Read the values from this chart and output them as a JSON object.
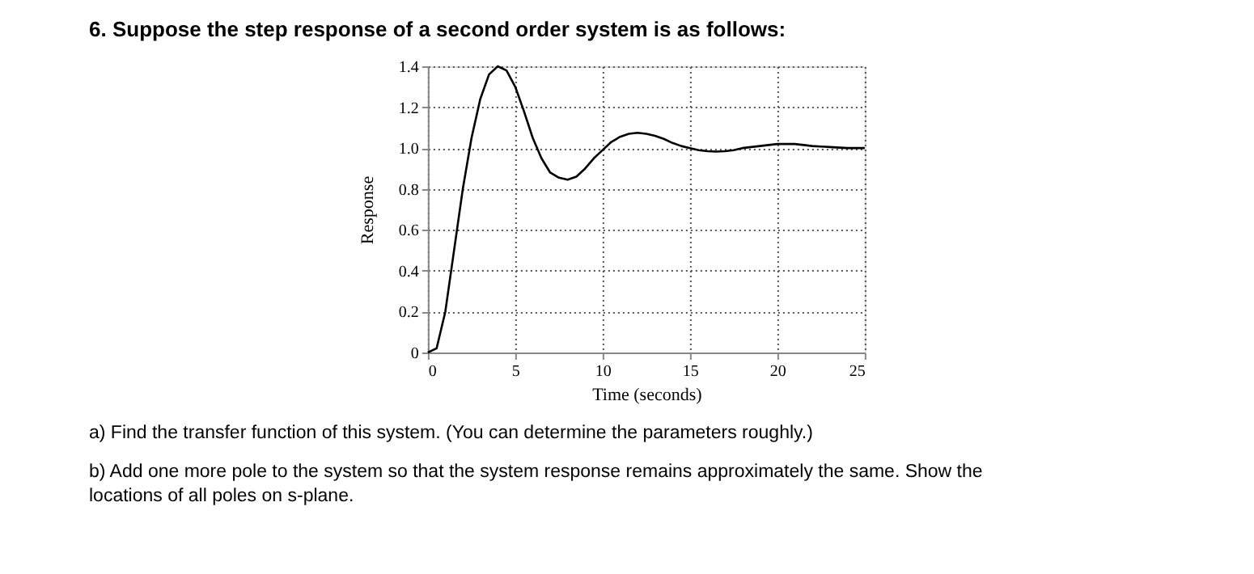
{
  "chart_data": {
    "type": "line",
    "title": "6. Suppose the step response of a second order system is as follows:",
    "xlabel": "Time (seconds)",
    "ylabel": "Response",
    "x": [
      0,
      0.5,
      1,
      1.5,
      2,
      2.5,
      3,
      3.5,
      4,
      4.5,
      5,
      5.5,
      6,
      6.5,
      7,
      7.5,
      8,
      8.5,
      9,
      9.5,
      10,
      10.5,
      11,
      11.5,
      12,
      12.5,
      13,
      13.5,
      14,
      14.5,
      15,
      15.5,
      16,
      16.5,
      17,
      17.5,
      18,
      19,
      20,
      21,
      22,
      23,
      24,
      25
    ],
    "series": [
      {
        "color": "#000000",
        "values": [
          0,
          0.02,
          0.2,
          0.5,
          0.8,
          1.05,
          1.24,
          1.36,
          1.4,
          1.38,
          1.3,
          1.18,
          1.05,
          0.95,
          0.88,
          0.855,
          0.845,
          0.86,
          0.9,
          0.95,
          0.99,
          1.03,
          1.055,
          1.07,
          1.075,
          1.07,
          1.06,
          1.045,
          1.025,
          1.01,
          1.0,
          0.99,
          0.985,
          0.983,
          0.985,
          0.99,
          1.0,
          1.01,
          1.02,
          1.02,
          1.01,
          1.005,
          1.0,
          1.0
        ]
      }
    ],
    "xlim": [
      0,
      25
    ],
    "xticks": [
      0,
      5,
      10,
      15,
      20,
      25
    ],
    "ylim": [
      0,
      1.4
    ],
    "yticks": [
      0,
      0.2,
      0.4,
      0.6,
      0.8,
      {
        "value": 1.0,
        "label": "1.0"
      },
      1.2,
      1.4
    ],
    "grid": true,
    "line_style": "solid",
    "marker": "none",
    "legend": false,
    "annotations": [
      "a) Find the transfer function of this system. (You can determine the parameters roughly.)",
      "b) Add one more pole to the system so that the system response remains approximately the same. Show   the locations of all poles on s-plane."
    ]
  }
}
